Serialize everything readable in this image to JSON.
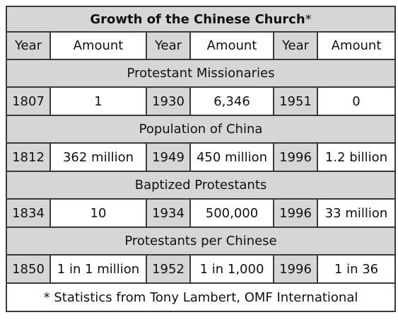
{
  "table": {
    "title": "Growth of the Chinese Church",
    "title_mark": "*",
    "headers": [
      "Year",
      "Amount",
      "Year",
      "Amount",
      "Year",
      "Amount"
    ],
    "sections": [
      {
        "label": "Protestant Missionaries",
        "cells": [
          "1807",
          "1",
          "1930",
          "6,346",
          "1951",
          "0"
        ]
      },
      {
        "label": "Population of China",
        "cells": [
          "1812",
          "362 million",
          "1949",
          "450 million",
          "1996",
          "1.2 billion"
        ]
      },
      {
        "label": "Baptized Protestants",
        "cells": [
          "1834",
          "10",
          "1934",
          "500,000",
          "1996",
          "33 million"
        ]
      },
      {
        "label": "Protestants per Chinese",
        "cells": [
          "1850",
          "1 in 1 million",
          "1952",
          "1 in 1,000",
          "1996",
          "1 in 36"
        ]
      }
    ],
    "footnote": "* Statistics from Tony Lambert, OMF International"
  },
  "colors": {
    "shade": "#d6d6d6",
    "border": "#3a3a3a"
  }
}
